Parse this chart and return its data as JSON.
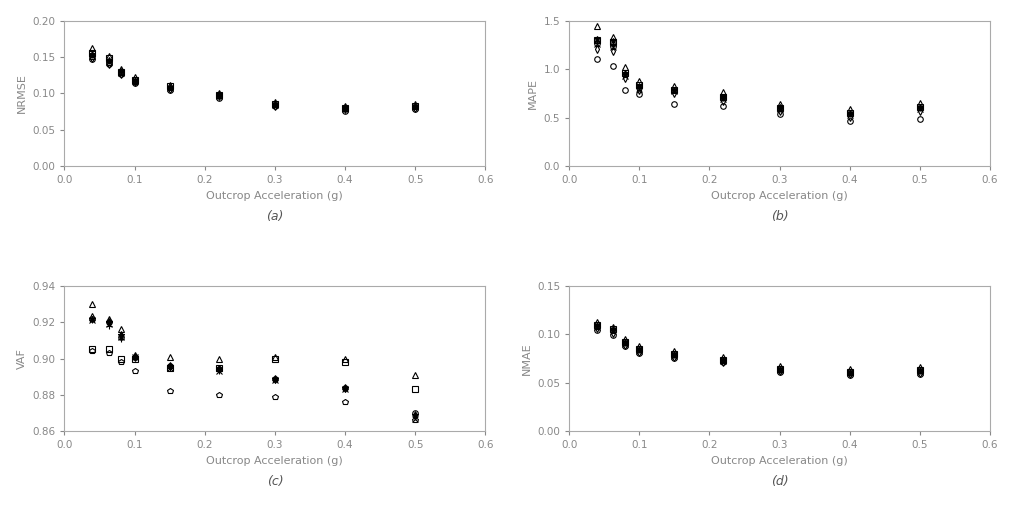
{
  "x_positions": [
    0.04,
    0.063,
    0.08,
    0.1,
    0.15,
    0.22,
    0.3,
    0.4,
    0.5
  ],
  "markers": [
    "s",
    "^",
    "o",
    "+",
    "x",
    "*",
    "d",
    "p"
  ],
  "marker_size": 4,
  "marker_color": "black",
  "xlabel": "Outcrop Acceleration (g)",
  "subplot_labels": [
    "(a)",
    "(b)",
    "(c)",
    "(d)"
  ],
  "nrmse": {
    "ylabel": "NRMSE",
    "ylim": [
      0,
      0.2
    ],
    "yticks": [
      0,
      0.05,
      0.1,
      0.15,
      0.2
    ],
    "series": [
      [
        0.155,
        0.148,
        0.13,
        0.118,
        0.11,
        0.098,
        0.086,
        0.08,
        0.083
      ],
      [
        0.162,
        0.152,
        0.134,
        0.122,
        0.112,
        0.101,
        0.088,
        0.083,
        0.086
      ],
      [
        0.147,
        0.14,
        0.126,
        0.114,
        0.104,
        0.094,
        0.082,
        0.076,
        0.078
      ],
      [
        0.153,
        0.145,
        0.13,
        0.118,
        0.109,
        0.098,
        0.085,
        0.08,
        0.082
      ],
      [
        0.151,
        0.143,
        0.128,
        0.117,
        0.107,
        0.097,
        0.084,
        0.079,
        0.081
      ],
      [
        0.154,
        0.146,
        0.131,
        0.119,
        0.109,
        0.099,
        0.086,
        0.081,
        0.083
      ],
      [
        0.148,
        0.14,
        0.127,
        0.115,
        0.106,
        0.096,
        0.083,
        0.078,
        0.08
      ],
      [
        0.15,
        0.142,
        0.128,
        0.116,
        0.107,
        0.097,
        0.084,
        0.079,
        0.081
      ]
    ]
  },
  "mape": {
    "ylabel": "MAPE",
    "ylim": [
      0,
      1.5
    ],
    "yticks": [
      0,
      0.5,
      1.0,
      1.5
    ],
    "series": [
      [
        1.3,
        1.28,
        0.96,
        0.84,
        0.79,
        0.71,
        0.6,
        0.55,
        0.61
      ],
      [
        1.44,
        1.33,
        1.02,
        0.88,
        0.83,
        0.76,
        0.64,
        0.59,
        0.65
      ],
      [
        1.1,
        1.03,
        0.79,
        0.74,
        0.64,
        0.62,
        0.54,
        0.47,
        0.49
      ],
      [
        1.29,
        1.26,
        0.95,
        0.82,
        0.78,
        0.7,
        0.6,
        0.54,
        0.6
      ],
      [
        1.26,
        1.23,
        0.93,
        0.8,
        0.77,
        0.69,
        0.59,
        0.53,
        0.59
      ],
      [
        1.31,
        1.29,
        0.96,
        0.83,
        0.79,
        0.71,
        0.61,
        0.55,
        0.61
      ],
      [
        1.21,
        1.19,
        0.91,
        0.78,
        0.75,
        0.67,
        0.57,
        0.51,
        0.57
      ],
      [
        1.26,
        1.23,
        0.94,
        0.81,
        0.78,
        0.7,
        0.6,
        0.54,
        0.6
      ]
    ]
  },
  "vaf": {
    "ylabel": "VAF",
    "ylim": [
      0.86,
      0.94
    ],
    "yticks": [
      0.86,
      0.88,
      0.9,
      0.92,
      0.94
    ],
    "series": [
      [
        0.905,
        0.905,
        0.9,
        0.9,
        0.895,
        0.895,
        0.9,
        0.898,
        0.883
      ],
      [
        0.93,
        0.922,
        0.916,
        0.902,
        0.901,
        0.9,
        0.901,
        0.9,
        0.891
      ],
      [
        0.922,
        0.92,
        0.912,
        0.901,
        0.896,
        0.894,
        0.889,
        0.884,
        0.87
      ],
      [
        0.921,
        0.918,
        0.911,
        0.901,
        0.895,
        0.893,
        0.888,
        0.883,
        0.869
      ],
      [
        0.921,
        0.919,
        0.912,
        0.901,
        0.895,
        0.893,
        0.888,
        0.883,
        0.867
      ],
      [
        0.922,
        0.92,
        0.913,
        0.901,
        0.896,
        0.894,
        0.889,
        0.884,
        0.869
      ],
      [
        0.923,
        0.92,
        0.913,
        0.901,
        0.896,
        0.894,
        0.889,
        0.884,
        0.869
      ],
      [
        0.904,
        0.903,
        0.898,
        0.893,
        0.882,
        0.88,
        0.879,
        0.876,
        0.866
      ]
    ]
  },
  "nmae": {
    "ylabel": "NMAE",
    "ylim": [
      0,
      0.15
    ],
    "yticks": [
      0,
      0.05,
      0.1,
      0.15
    ],
    "series": [
      [
        0.11,
        0.105,
        0.092,
        0.085,
        0.08,
        0.074,
        0.064,
        0.061,
        0.063
      ],
      [
        0.113,
        0.108,
        0.095,
        0.088,
        0.083,
        0.077,
        0.067,
        0.064,
        0.066
      ],
      [
        0.104,
        0.099,
        0.088,
        0.081,
        0.076,
        0.071,
        0.061,
        0.058,
        0.059
      ],
      [
        0.109,
        0.104,
        0.091,
        0.084,
        0.079,
        0.073,
        0.063,
        0.06,
        0.062
      ],
      [
        0.108,
        0.103,
        0.09,
        0.083,
        0.078,
        0.072,
        0.063,
        0.06,
        0.061
      ],
      [
        0.11,
        0.105,
        0.092,
        0.085,
        0.08,
        0.074,
        0.064,
        0.061,
        0.063
      ],
      [
        0.106,
        0.101,
        0.089,
        0.082,
        0.077,
        0.071,
        0.062,
        0.059,
        0.06
      ],
      [
        0.108,
        0.103,
        0.091,
        0.084,
        0.079,
        0.073,
        0.063,
        0.06,
        0.062
      ]
    ]
  },
  "xlim": [
    0,
    0.6
  ],
  "xticks": [
    0,
    0.1,
    0.2,
    0.3,
    0.4,
    0.5,
    0.6
  ],
  "figure_background": "#ffffff",
  "axes_background": "#ffffff",
  "spine_color": "#aaaaaa",
  "tick_label_color": "#888888",
  "axis_label_color": "#888888"
}
